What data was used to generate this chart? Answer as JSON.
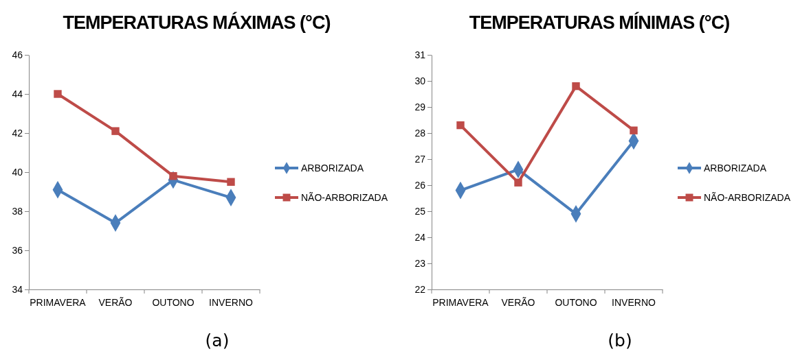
{
  "chart_data": [
    {
      "type": "line",
      "title": "TEMPERATURAS MÁXIMAS (°C)",
      "categories": [
        "PRIMAVERA",
        "VERÃO",
        "OUTONO",
        "INVERNO"
      ],
      "ylim": [
        34,
        46
      ],
      "yticks": [
        34,
        36,
        38,
        40,
        42,
        44,
        46
      ],
      "legend": "right",
      "grid": false,
      "annotations": [
        "(a)"
      ],
      "series": [
        {
          "name": "ARBORIZADA",
          "color": "#4a7ebb",
          "marker": "diamond",
          "values": [
            39.1,
            37.4,
            39.6,
            38.7
          ]
        },
        {
          "name": "NÃO-ARBORIZADA",
          "color": "#be4b48",
          "marker": "square",
          "values": [
            44.0,
            42.1,
            39.8,
            39.5
          ]
        }
      ]
    },
    {
      "type": "line",
      "title": "TEMPERATURAS MÍNIMAS (°C)",
      "categories": [
        "PRIMAVERA",
        "VERÃO",
        "OUTONO",
        "INVERNO"
      ],
      "ylim": [
        22,
        31
      ],
      "yticks": [
        22,
        23,
        24,
        25,
        26,
        27,
        28,
        29,
        30,
        31
      ],
      "legend": "right",
      "grid": false,
      "annotations": [
        "(b)"
      ],
      "series": [
        {
          "name": "ARBORIZADA",
          "color": "#4a7ebb",
          "marker": "diamond",
          "values": [
            25.8,
            26.6,
            24.9,
            27.7
          ]
        },
        {
          "name": "NÃO-ARBORIZADA",
          "color": "#be4b48",
          "marker": "square",
          "values": [
            28.3,
            26.1,
            29.8,
            28.1
          ]
        }
      ]
    }
  ]
}
